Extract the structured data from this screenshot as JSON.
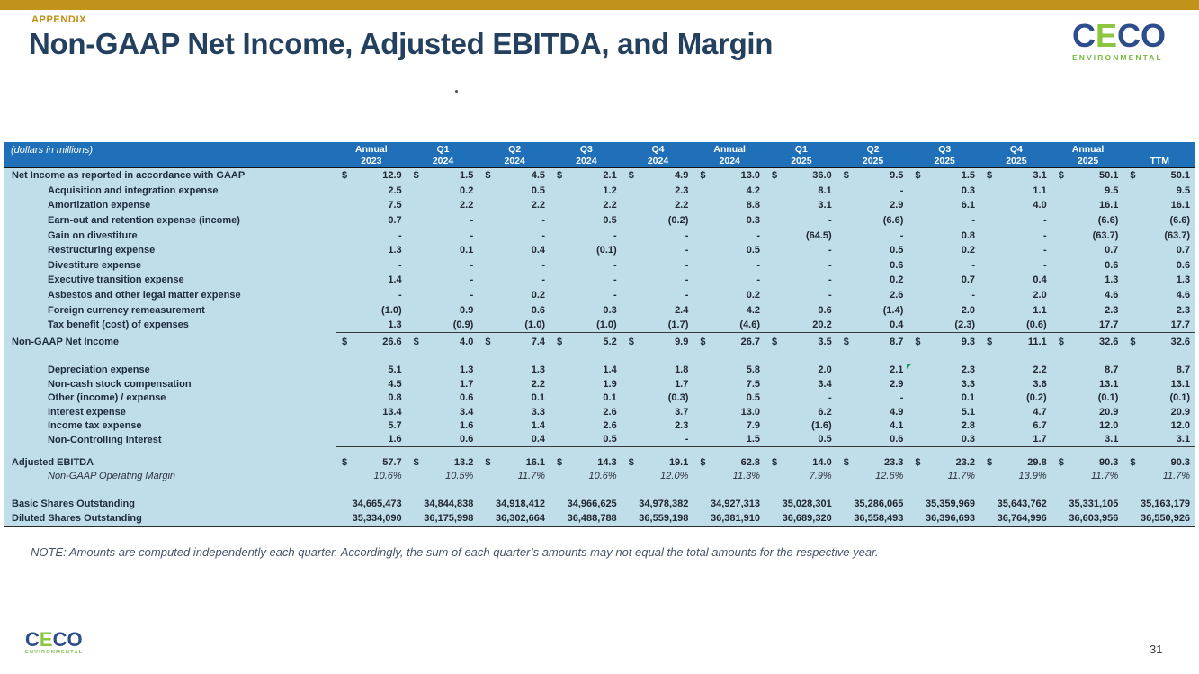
{
  "slide": {
    "appendix_label": "APPENDIX",
    "title": "Non-GAAP Net Income, Adjusted EBITDA, and Margin",
    "note": "NOTE:  Amounts are computed independently each quarter. Accordingly, the sum of each quarter’s amounts may not equal the total amounts for the respective year.",
    "page_number": "31"
  },
  "logo": {
    "l1": "C",
    "l2": "E",
    "l3": "C",
    "l4": "O",
    "subtitle": "ENVIRONMENTAL"
  },
  "colors": {
    "accent_gold": "#C2931B",
    "table_header_blue": "#1F70B8",
    "table_body_blue": "#C0DDEA",
    "title_navy": "#24405F",
    "logo_blue": "#2E4D8C",
    "logo_green": "#8CC63F",
    "comment_marker_green": "#1E9A50"
  },
  "table": {
    "units_label": "(dollars in millions)",
    "currency_symbol": "$",
    "columns": [
      {
        "l1": "Annual",
        "l2": "2023"
      },
      {
        "l1": "Q1",
        "l2": "2024"
      },
      {
        "l1": "Q2",
        "l2": "2024"
      },
      {
        "l1": "Q3",
        "l2": "2024"
      },
      {
        "l1": "Q4",
        "l2": "2024"
      },
      {
        "l1": "Annual",
        "l2": "2024"
      },
      {
        "l1": "Q1",
        "l2": "2025"
      },
      {
        "l1": "Q2",
        "l2": "2025"
      },
      {
        "l1": "Q3",
        "l2": "2025"
      },
      {
        "l1": "Q4",
        "l2": "2025"
      },
      {
        "l1": "Annual",
        "l2": "2025"
      },
      {
        "l1": "",
        "l2": "TTM"
      }
    ],
    "rows": [
      {
        "kind": "r1",
        "dollar": true,
        "label": "Net Income as reported in accordance with GAAP",
        "values": [
          "12.9",
          "1.5",
          "4.5",
          "2.1",
          "4.9",
          "13.0",
          "36.0",
          "9.5",
          "1.5",
          "3.1",
          "50.1",
          "50.1"
        ]
      },
      {
        "kind": "r1",
        "indent": true,
        "label": "Acquisition and integration expense",
        "values": [
          "2.5",
          "0.2",
          "0.5",
          "1.2",
          "2.3",
          "4.2",
          "8.1",
          "-",
          "0.3",
          "1.1",
          "9.5",
          "9.5"
        ]
      },
      {
        "kind": "r1",
        "indent": true,
        "label": "Amortization expense",
        "values": [
          "7.5",
          "2.2",
          "2.2",
          "2.2",
          "2.2",
          "8.8",
          "3.1",
          "2.9",
          "6.1",
          "4.0",
          "16.1",
          "16.1"
        ]
      },
      {
        "kind": "r1",
        "indent": true,
        "label": "Earn-out and retention expense (income)",
        "values": [
          "0.7",
          "-",
          "-",
          "0.5",
          "(0.2)",
          "0.3",
          "-",
          "(6.6)",
          "-",
          "-",
          "(6.6)",
          "(6.6)"
        ]
      },
      {
        "kind": "r1",
        "indent": true,
        "label": "Gain on divestiture",
        "values": [
          "-",
          "-",
          "-",
          "-",
          "-",
          "-",
          "(64.5)",
          "-",
          "0.8",
          "-",
          "(63.7)",
          "(63.7)"
        ]
      },
      {
        "kind": "r1",
        "indent": true,
        "label": "Restructuring expense",
        "values": [
          "1.3",
          "0.1",
          "0.4",
          "(0.1)",
          "-",
          "0.5",
          "-",
          "0.5",
          "0.2",
          "-",
          "0.7",
          "0.7"
        ]
      },
      {
        "kind": "r1",
        "indent": true,
        "label": "Divestiture expense",
        "values": [
          "-",
          "-",
          "-",
          "-",
          "-",
          "-",
          "-",
          "0.6",
          "-",
          "-",
          "0.6",
          "0.6"
        ]
      },
      {
        "kind": "r1",
        "indent": true,
        "label": "Executive transition expense",
        "values": [
          "1.4",
          "-",
          "-",
          "-",
          "-",
          "-",
          "-",
          "0.2",
          "0.7",
          "0.4",
          "1.3",
          "1.3"
        ]
      },
      {
        "kind": "r1",
        "indent": true,
        "label": "Asbestos and other legal matter expense",
        "values": [
          "-",
          "-",
          "0.2",
          "-",
          "-",
          "0.2",
          "-",
          "2.6",
          "-",
          "2.0",
          "4.6",
          "4.6"
        ]
      },
      {
        "kind": "r1",
        "indent": true,
        "label": "Foreign currency remeasurement",
        "values": [
          "(1.0)",
          "0.9",
          "0.6",
          "0.3",
          "2.4",
          "4.2",
          "0.6",
          "(1.4)",
          "2.0",
          "1.1",
          "2.3",
          "2.3"
        ]
      },
      {
        "kind": "r1",
        "indent": true,
        "underline": true,
        "label": "Tax benefit (cost) of expenses",
        "values": [
          "1.3",
          "(0.9)",
          "(1.0)",
          "(1.0)",
          "(1.7)",
          "(4.6)",
          "20.2",
          "0.4",
          "(2.3)",
          "(0.6)",
          "17.7",
          "17.7"
        ]
      },
      {
        "kind": "sub",
        "dollar": true,
        "label": "Non-GAAP Net Income",
        "values": [
          "26.6",
          "4.0",
          "7.4",
          "5.2",
          "9.9",
          "26.7",
          "3.5",
          "8.7",
          "9.3",
          "11.1",
          "32.6",
          "32.6"
        ]
      },
      {
        "kind": "gap1"
      },
      {
        "kind": "r2",
        "indent": true,
        "marker": 7,
        "label": "Depreciation expense",
        "values": [
          "5.1",
          "1.3",
          "1.3",
          "1.4",
          "1.8",
          "5.8",
          "2.0",
          "2.1",
          "2.3",
          "2.2",
          "8.7",
          "8.7"
        ]
      },
      {
        "kind": "r2",
        "indent": true,
        "label": "Non-cash stock compensation",
        "values": [
          "4.5",
          "1.7",
          "2.2",
          "1.9",
          "1.7",
          "7.5",
          "3.4",
          "2.9",
          "3.3",
          "3.6",
          "13.1",
          "13.1"
        ]
      },
      {
        "kind": "r2",
        "indent": true,
        "label": "Other (income) / expense",
        "values": [
          "0.8",
          "0.6",
          "0.1",
          "0.1",
          "(0.3)",
          "0.5",
          "-",
          "-",
          "0.1",
          "(0.2)",
          "(0.1)",
          "(0.1)"
        ]
      },
      {
        "kind": "r2",
        "indent": true,
        "label": "Interest expense",
        "values": [
          "13.4",
          "3.4",
          "3.3",
          "2.6",
          "3.7",
          "13.0",
          "6.2",
          "4.9",
          "5.1",
          "4.7",
          "20.9",
          "20.9"
        ]
      },
      {
        "kind": "r2",
        "indent": true,
        "label": "Income tax expense",
        "values": [
          "5.7",
          "1.6",
          "1.4",
          "2.6",
          "2.3",
          "7.9",
          "(1.6)",
          "4.1",
          "2.8",
          "6.7",
          "12.0",
          "12.0"
        ]
      },
      {
        "kind": "r2",
        "indent": true,
        "underline": true,
        "label": "Non-Controlling Interest",
        "values": [
          "1.6",
          "0.6",
          "0.4",
          "0.5",
          "-",
          "1.5",
          "0.5",
          "0.6",
          "0.3",
          "1.7",
          "3.1",
          "3.1"
        ]
      },
      {
        "kind": "gap2"
      },
      {
        "kind": "eb",
        "dollar": true,
        "label": "Adjusted EBITDA",
        "values": [
          "57.7",
          "13.2",
          "16.1",
          "14.3",
          "19.1",
          "62.8",
          "14.0",
          "23.3",
          "23.2",
          "29.8",
          "90.3",
          "90.3"
        ]
      },
      {
        "kind": "mg",
        "indent": true,
        "italic": true,
        "label": "Non-GAAP Operating Margin",
        "values": [
          "10.6%",
          "10.5%",
          "11.7%",
          "10.6%",
          "12.0%",
          "11.3%",
          "7.9%",
          "12.6%",
          "11.7%",
          "13.9%",
          "11.7%",
          "11.7%"
        ]
      },
      {
        "kind": "gap3"
      },
      {
        "kind": "sh",
        "label": "Basic Shares Outstanding",
        "values": [
          "34,665,473",
          "34,844,838",
          "34,918,412",
          "34,966,625",
          "34,978,382",
          "34,927,313",
          "35,028,301",
          "35,286,065",
          "35,359,969",
          "35,643,762",
          "35,331,105",
          "35,163,179"
        ]
      },
      {
        "kind": "sh",
        "label": "Diluted Shares Outstanding",
        "values": [
          "35,334,090",
          "36,175,998",
          "36,302,664",
          "36,488,788",
          "36,559,198",
          "36,381,910",
          "36,689,320",
          "36,558,493",
          "36,396,693",
          "36,764,996",
          "36,603,956",
          "36,550,926"
        ]
      }
    ]
  }
}
